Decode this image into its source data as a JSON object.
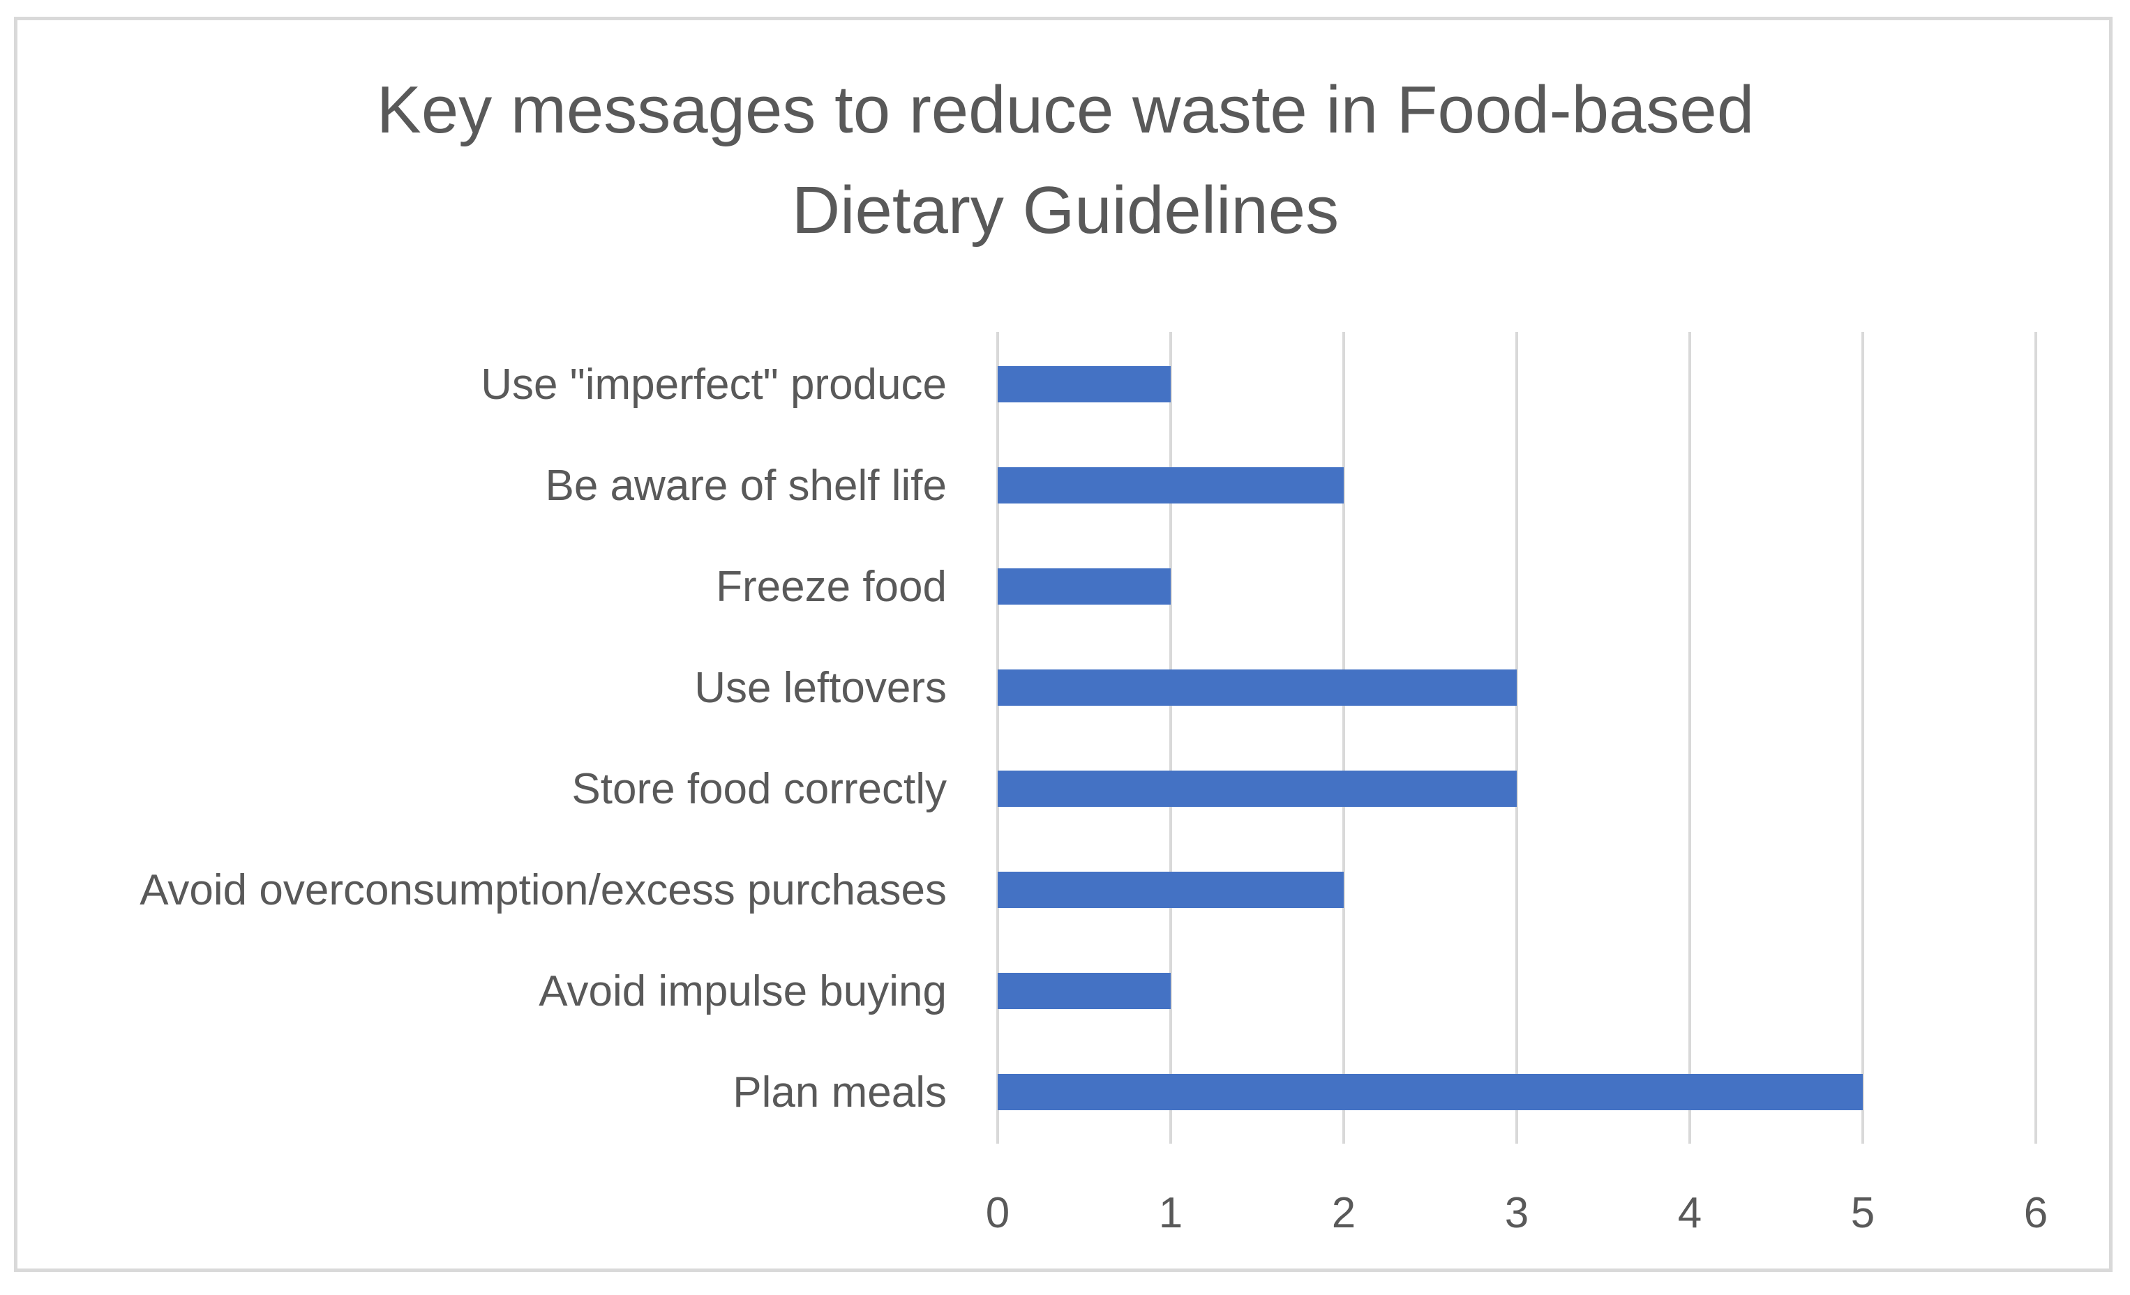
{
  "chart_data": {
    "type": "bar",
    "orientation": "horizontal",
    "title_lines": [
      "Key messages to reduce waste in Food-based",
      "Dietary Guidelines"
    ],
    "categories": [
      "Use \"imperfect\" produce",
      "Be aware of shelf life",
      "Freeze food",
      "Use leftovers",
      "Store food correctly",
      "Avoid overconsumption/excess purchases",
      "Avoid impulse buying",
      "Plan meals"
    ],
    "values": [
      1,
      2,
      1,
      3,
      3,
      2,
      1,
      5
    ],
    "xlim": [
      0,
      6
    ],
    "xticks": [
      "0",
      "1",
      "2",
      "3",
      "4",
      "5",
      "6"
    ],
    "grid": true,
    "legend": "none",
    "bar_color": "#4472c4"
  }
}
